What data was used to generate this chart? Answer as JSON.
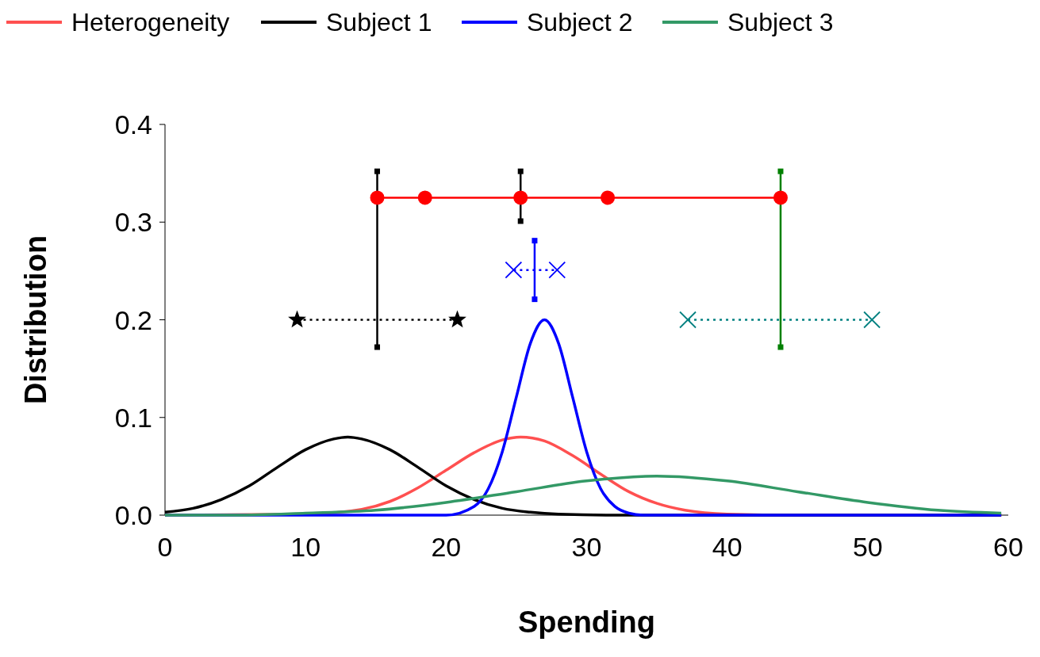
{
  "chart_data": {
    "type": "line",
    "xlabel": "Spending",
    "ylabel": "Distribution",
    "xlim": [
      0,
      60
    ],
    "ylim": [
      0,
      0.4
    ],
    "xticks": [
      0,
      10,
      20,
      30,
      40,
      50,
      60
    ],
    "yticks": [
      {
        "value": 0,
        "label": "0.0"
      },
      0.1,
      0.2,
      0.3,
      0.4
    ],
    "legend": "top left",
    "grid": false,
    "series": [
      {
        "name": "Heterogeneity",
        "color": "#ff5050",
        "x": [
          0,
          10,
          14,
          16,
          18,
          20,
          22,
          24,
          25.3,
          27,
          29,
          31,
          33,
          35,
          37,
          40,
          45,
          59.5
        ],
        "values": [
          0,
          0.001,
          0.006,
          0.014,
          0.028,
          0.046,
          0.064,
          0.077,
          0.08,
          0.076,
          0.061,
          0.042,
          0.024,
          0.012,
          0.005,
          0.001,
          0,
          0
        ],
        "marker": "none",
        "line_style": "solid"
      },
      {
        "name": "Subject 1",
        "color": "#000000",
        "x": [
          0,
          2,
          4,
          6,
          8,
          10,
          12,
          13,
          14,
          16,
          18,
          20,
          22,
          24,
          26,
          28,
          32,
          40,
          59.5
        ],
        "values": [
          0.003,
          0.007,
          0.016,
          0.03,
          0.049,
          0.067,
          0.078,
          0.08,
          0.078,
          0.067,
          0.049,
          0.03,
          0.016,
          0.007,
          0.003,
          0.001,
          0,
          0,
          0
        ],
        "marker": "none",
        "line_style": "solid"
      },
      {
        "name": "Subject 2",
        "color": "#0000ff",
        "x": [
          0,
          20,
          22,
          23,
          24,
          25,
          26,
          27,
          28,
          29,
          30,
          31,
          32,
          33,
          34,
          36,
          59.5
        ],
        "values": [
          0,
          0,
          0.009,
          0.027,
          0.065,
          0.121,
          0.176,
          0.2,
          0.176,
          0.121,
          0.065,
          0.027,
          0.009,
          0.002,
          0,
          0,
          0
        ],
        "marker": "none",
        "line_style": "solid"
      },
      {
        "name": "Subject 3",
        "color": "#339966",
        "x": [
          0,
          5,
          10,
          15,
          20,
          25,
          30,
          35,
          40,
          45,
          50,
          55,
          59.5
        ],
        "values": [
          0,
          0,
          0.002,
          0.005,
          0.013,
          0.024,
          0.035,
          0.04,
          0.035,
          0.024,
          0.013,
          0.005,
          0.002
        ],
        "marker": "none",
        "line_style": "solid"
      },
      {
        "color": "#000000",
        "x": [
          9.4,
          20.8
        ],
        "values": [
          0.2,
          0.2
        ],
        "marker": "star",
        "line_style": "dotted"
      },
      {
        "color": "#0000ff",
        "x": [
          24.8,
          27.9
        ],
        "values": [
          0.251,
          0.251
        ],
        "marker": "cross",
        "line_style": "dotted"
      },
      {
        "color": "#008080",
        "x": [
          37.2,
          50.3
        ],
        "values": [
          0.2,
          0.2
        ],
        "marker": "cross",
        "line_style": "dotted"
      },
      {
        "color": "#000000",
        "x": [
          15.1,
          15.1
        ],
        "values": [
          0.172,
          0.352
        ],
        "marker": "square",
        "line_style": "solid"
      },
      {
        "color": "#000000",
        "x": [
          25.3,
          25.3
        ],
        "values": [
          0.301,
          0.352
        ],
        "marker": "square",
        "line_style": "solid"
      },
      {
        "color": "#0000ff",
        "x": [
          26.3,
          26.3
        ],
        "values": [
          0.221,
          0.281
        ],
        "marker": "square",
        "line_style": "solid"
      },
      {
        "color": "#008000",
        "x": [
          43.8,
          43.8
        ],
        "values": [
          0.172,
          0.352
        ],
        "marker": "square",
        "line_style": "solid"
      },
      {
        "color": "#ff0000",
        "x": [
          15.1,
          18.5,
          25.3,
          31.5,
          43.8
        ],
        "values": [
          0.325,
          0.325,
          0.325,
          0.325,
          0.325
        ],
        "marker": "circle",
        "line_style": "solid"
      }
    ]
  }
}
